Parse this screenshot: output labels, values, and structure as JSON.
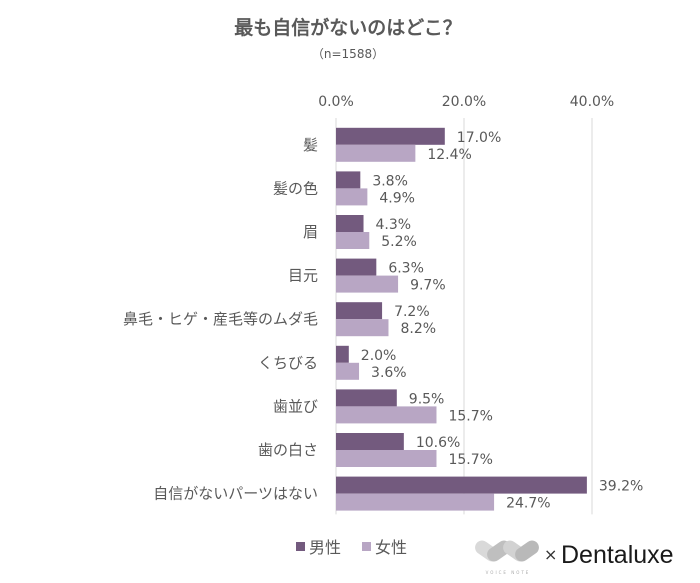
{
  "chart_data": {
    "type": "bar",
    "orientation": "horizontal",
    "title": "最も自信がないのはどこ？",
    "subtitle": "（n=1588）",
    "categories": [
      "髪",
      "髪の色",
      "眉",
      "目元",
      "鼻毛・ヒゲ・産毛等のムダ毛",
      "くちびる",
      "歯並び",
      "歯の白さ",
      "自信がないパーツはない"
    ],
    "series": [
      {
        "name": "男性",
        "color": "#735a7e",
        "values": [
          17.0,
          3.8,
          4.3,
          6.3,
          7.2,
          2.0,
          9.5,
          10.6,
          39.2
        ]
      },
      {
        "name": "女性",
        "color": "#b8a6c4",
        "values": [
          12.4,
          4.9,
          5.2,
          9.7,
          8.2,
          3.6,
          15.7,
          15.7,
          24.7
        ]
      }
    ],
    "xlim": [
      0,
      40
    ],
    "x_ticks": [
      "0.0%",
      "20.0%",
      "40.0%"
    ],
    "x_tick_values": [
      0,
      20,
      40
    ],
    "axis_position": "top",
    "grid": true,
    "legend": "bottom",
    "value_format": "%"
  },
  "footer": {
    "times": "×",
    "brand": "Dentaluxe",
    "logo_text": "VOICE NOTE"
  }
}
